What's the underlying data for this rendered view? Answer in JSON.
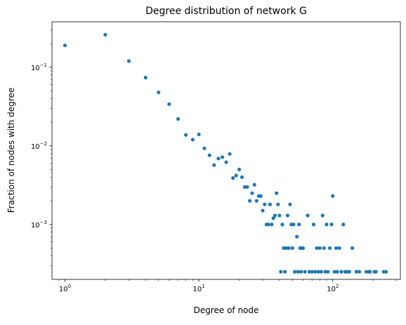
{
  "chart_data": {
    "type": "scatter",
    "title": "Degree distribution of network G",
    "xlabel": "Degree of node",
    "ylabel": "Fraction of nodes with degree",
    "xscale": "log",
    "yscale": "log",
    "xlim": [
      0.8,
      320
    ],
    "ylim": [
      0.0002,
      0.38
    ],
    "grid": false,
    "marker_color": "#1f77b4",
    "x_ticks": [
      {
        "value": 1,
        "base": "10",
        "exp": "0"
      },
      {
        "value": 10,
        "base": "10",
        "exp": "1"
      },
      {
        "value": 100,
        "base": "10",
        "exp": "2"
      }
    ],
    "y_ticks": [
      {
        "value": 0.001,
        "base": "10",
        "exp": "−3"
      },
      {
        "value": 0.01,
        "base": "10",
        "exp": "−2"
      },
      {
        "value": 0.1,
        "base": "10",
        "exp": "−1"
      }
    ],
    "points": [
      [
        1,
        0.19
      ],
      [
        2,
        0.26
      ],
      [
        3,
        0.12
      ],
      [
        4,
        0.074
      ],
      [
        5,
        0.048
      ],
      [
        6,
        0.034
      ],
      [
        7,
        0.022
      ],
      [
        8,
        0.0138
      ],
      [
        9,
        0.012
      ],
      [
        10,
        0.014
      ],
      [
        11,
        0.0093
      ],
      [
        12,
        0.0076
      ],
      [
        13,
        0.0057
      ],
      [
        14,
        0.0069
      ],
      [
        15,
        0.0072
      ],
      [
        16,
        0.0062
      ],
      [
        17,
        0.0079
      ],
      [
        18,
        0.0039
      ],
      [
        19,
        0.0042
      ],
      [
        20,
        0.005
      ],
      [
        21,
        0.004
      ],
      [
        22,
        0.003
      ],
      [
        23,
        0.003
      ],
      [
        24,
        0.002
      ],
      [
        25,
        0.0025
      ],
      [
        26,
        0.0032
      ],
      [
        27,
        0.002
      ],
      [
        28,
        0.0023
      ],
      [
        29,
        0.0023
      ],
      [
        30,
        0.0015
      ],
      [
        31,
        0.0018
      ],
      [
        32,
        0.001
      ],
      [
        33,
        0.001
      ],
      [
        34,
        0.0018
      ],
      [
        35,
        0.001
      ],
      [
        36,
        0.0012
      ],
      [
        37,
        0.0013
      ],
      [
        38,
        0.0025
      ],
      [
        39,
        0.0018
      ],
      [
        40,
        0.0013
      ],
      [
        41,
        0.00025
      ],
      [
        42,
        0.001
      ],
      [
        43,
        0.0005
      ],
      [
        44,
        0.00025
      ],
      [
        45,
        0.0005
      ],
      [
        46,
        0.0013
      ],
      [
        47,
        0.0005
      ],
      [
        48,
        0.0018
      ],
      [
        49,
        0.001
      ],
      [
        50,
        0.0005
      ],
      [
        51,
        0.001
      ],
      [
        52,
        0.00025
      ],
      [
        54,
        0.0007
      ],
      [
        55,
        0.00025
      ],
      [
        56,
        0.001
      ],
      [
        57,
        0.0005
      ],
      [
        58,
        0.00025
      ],
      [
        59,
        0.0005
      ],
      [
        60,
        0.0005
      ],
      [
        62,
        0.00025
      ],
      [
        65,
        0.0013
      ],
      [
        67,
        0.00025
      ],
      [
        70,
        0.00025
      ],
      [
        72,
        0.001
      ],
      [
        74,
        0.00025
      ],
      [
        76,
        0.0005
      ],
      [
        78,
        0.00025
      ],
      [
        80,
        0.0005
      ],
      [
        82,
        0.00025
      ],
      [
        84,
        0.0013
      ],
      [
        86,
        0.0005
      ],
      [
        88,
        0.00025
      ],
      [
        90,
        0.001
      ],
      [
        92,
        0.00025
      ],
      [
        95,
        0.0005
      ],
      [
        98,
        0.001
      ],
      [
        100,
        0.0023
      ],
      [
        103,
        0.00025
      ],
      [
        106,
        0.0005
      ],
      [
        108,
        0.00025
      ],
      [
        112,
        0.0005
      ],
      [
        116,
        0.00025
      ],
      [
        120,
        0.001
      ],
      [
        124,
        0.00025
      ],
      [
        128,
        0.00025
      ],
      [
        133,
        0.00025
      ],
      [
        140,
        0.0005
      ],
      [
        150,
        0.00025
      ],
      [
        158,
        0.00025
      ],
      [
        178,
        0.00025
      ],
      [
        186,
        0.00025
      ],
      [
        190,
        0.00025
      ],
      [
        205,
        0.00025
      ],
      [
        210,
        0.00025
      ],
      [
        240,
        0.00025
      ],
      [
        250,
        0.00025
      ]
    ]
  }
}
